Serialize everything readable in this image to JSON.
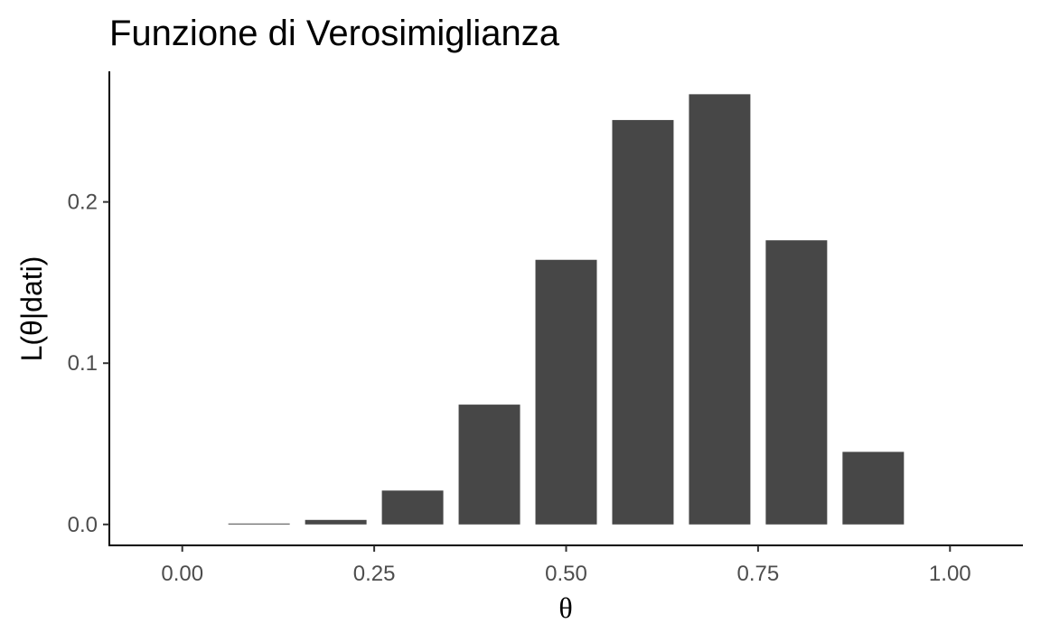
{
  "chart_data": {
    "type": "bar",
    "title": "Funzione di Verosimiglianza",
    "xlabel": "θ",
    "ylabel": "L(θ|dati)",
    "x": [
      0.0,
      0.1,
      0.2,
      0.3,
      0.4,
      0.5,
      0.6,
      0.7,
      0.8,
      0.9,
      1.0
    ],
    "values": [
      0.0,
      0.0001,
      0.0028,
      0.021,
      0.0743,
      0.1641,
      0.2508,
      0.2668,
      0.1762,
      0.045,
      0.0
    ],
    "xlim": [
      -0.095,
      1.095
    ],
    "ylim": [
      -0.013,
      0.281
    ],
    "x_ticks": [
      0.0,
      0.25,
      0.5,
      0.75,
      1.0
    ],
    "x_tick_labels": [
      "0.00",
      "0.25",
      "0.50",
      "0.75",
      "1.00"
    ],
    "y_ticks": [
      0.0,
      0.1,
      0.2
    ],
    "y_tick_labels": [
      "0.0",
      "0.1",
      "0.2"
    ],
    "bar_width": 0.08,
    "bar_color": "#474747",
    "axis_color": "#000000",
    "grid": false,
    "legend": "none"
  }
}
